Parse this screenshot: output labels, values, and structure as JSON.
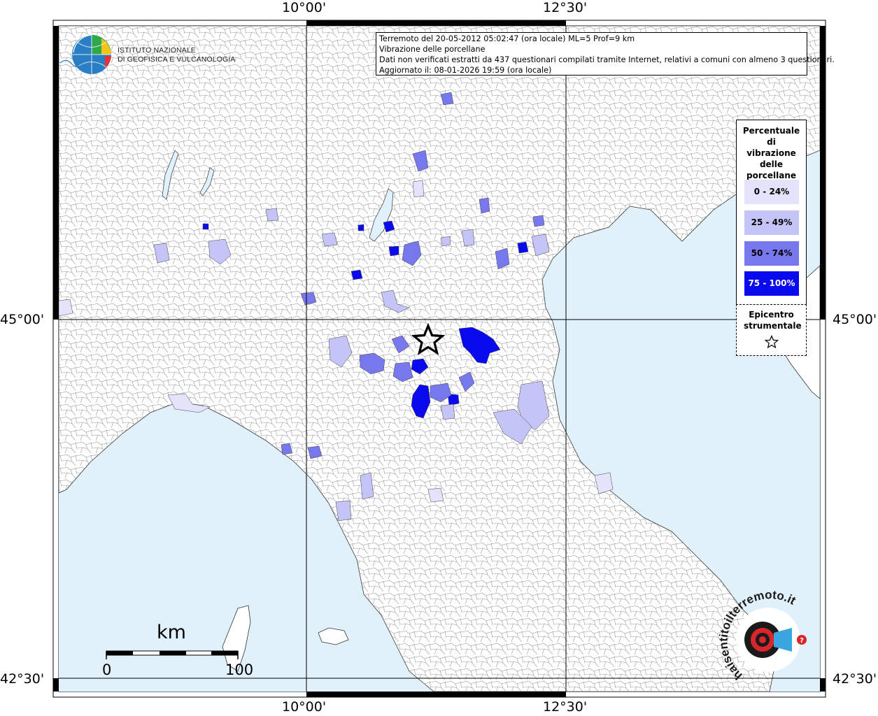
{
  "header": {
    "org_line1": "ISTITUTO NAZIONALE",
    "org_line2": "DI GEOFISICA E VULCANOLOGIA"
  },
  "info": {
    "line1": "Terremoto del 20-05-2012 05:02:47 (ora locale) ML=5 Prof=9 km",
    "line2": "Vibrazione delle porcellane",
    "line3": "Dati non verificati estratti da 437 questionari compilati tramite Internet, relativi a comuni con almeno 3 questionari.",
    "line4": "Aggiornato il: 08-01-2026 19:59 (ora locale)"
  },
  "axes": {
    "lon_labels": [
      "10°00'",
      "12°30'"
    ],
    "lat_labels": [
      "45°00'",
      "42°30'"
    ]
  },
  "legend": {
    "title": "Percentuale di vibrazione delle porcellane",
    "classes": [
      {
        "label": "0 - 24%",
        "color": "#e3e3fb"
      },
      {
        "label": "25 - 49%",
        "color": "#c4c4f6"
      },
      {
        "label": "50 - 74%",
        "color": "#7878ee"
      },
      {
        "label": "75 - 100%",
        "color": "#0a0aee"
      }
    ],
    "epicenter_title": "Epicentro strumentale",
    "epicenter_symbol": "star"
  },
  "scale_bar": {
    "unit": "km",
    "start": "0",
    "end": "100"
  },
  "colors": {
    "sea": "#e0f1fb",
    "land": "#ffffff",
    "grid": "#000000"
  },
  "watermark": {
    "text": "haisentitoilterremoto.it",
    "url": "www"
  }
}
